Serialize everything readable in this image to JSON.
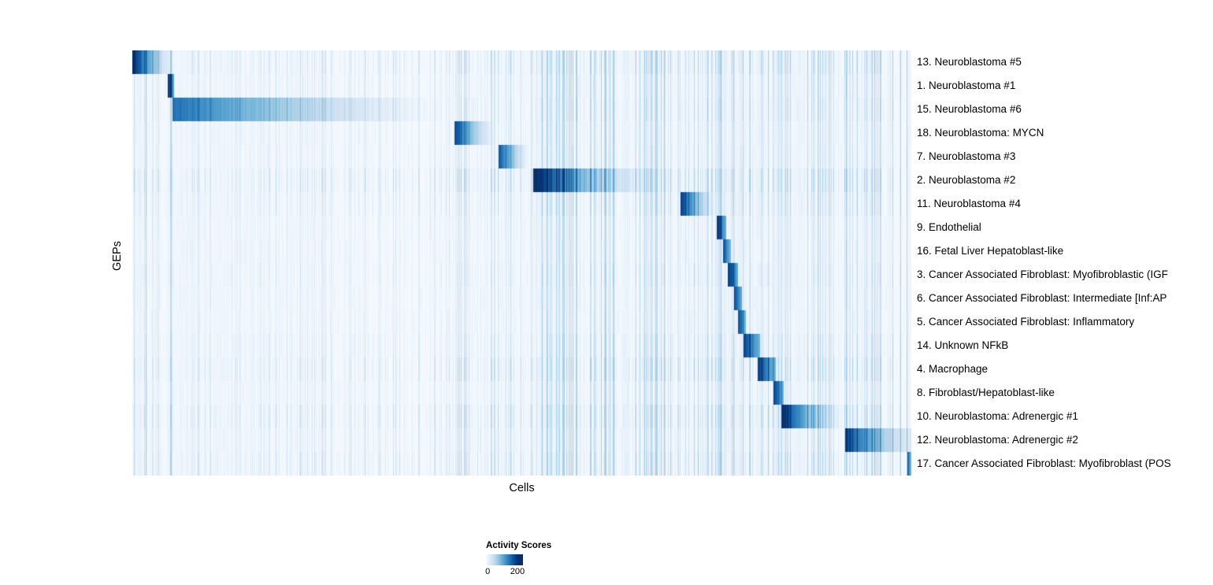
{
  "figure": {
    "background": "#ffffff",
    "x_axis_label": "Cells",
    "y_axis_label": "GEPs"
  },
  "legend": {
    "title": "Activity Scores",
    "tick_low": "0",
    "tick_high": "200"
  },
  "chart_data": {
    "type": "heatmap",
    "title": "",
    "xlabel": "Cells",
    "ylabel": "GEPs",
    "value_label": "Activity Scores",
    "value_range": [
      0,
      235
    ],
    "legend_ticks": [
      0,
      200
    ],
    "grid": false,
    "legend_position": "bottom-left",
    "colormap": {
      "name": "Blues",
      "stops": [
        {
          "pos": 0.0,
          "color": "#f7fbff"
        },
        {
          "pos": 0.125,
          "color": "#deebf7"
        },
        {
          "pos": 0.25,
          "color": "#c6dbef"
        },
        {
          "pos": 0.375,
          "color": "#9ecae1"
        },
        {
          "pos": 0.5,
          "color": "#6baed6"
        },
        {
          "pos": 0.625,
          "color": "#4292c6"
        },
        {
          "pos": 0.75,
          "color": "#2171b5"
        },
        {
          "pos": 0.875,
          "color": "#08519c"
        },
        {
          "pos": 1.0,
          "color": "#08306b"
        }
      ]
    },
    "rows": [
      {
        "label": "13. Neuroblastoma #5",
        "noise": 1.3,
        "block": {
          "start": 0.0,
          "end": 0.056,
          "peak": 235,
          "fade": 1.5
        }
      },
      {
        "label": "1. Neuroblastoma #1",
        "noise": 0.9,
        "block": {
          "start": 0.0455,
          "end": 0.0535,
          "peak": 235
        }
      },
      {
        "label": "15. Neuroblastoma #6",
        "noise": 1.0,
        "block": {
          "start": 0.052,
          "end": 0.413,
          "peak": 165,
          "fade": 1.6
        }
      },
      {
        "label": "18. Neuroblastoma: MYCN",
        "noise": 0.8,
        "block": {
          "start": 0.414,
          "end": 0.47,
          "peak": 195,
          "fade": 1.6
        }
      },
      {
        "label": "7. Neuroblastoma #3",
        "noise": 0.8,
        "block": {
          "start": 0.47,
          "end": 0.512,
          "peak": 195,
          "fade": 1.5
        }
      },
      {
        "label": "2. Neuroblastoma #2",
        "noise": 1.5,
        "block": {
          "start": 0.515,
          "end": 0.704,
          "peak": 235,
          "fade": 2.2
        }
      },
      {
        "label": "11. Neuroblastoma #4",
        "noise": 1.0,
        "block": {
          "start": 0.704,
          "end": 0.75,
          "peak": 215,
          "fade": 1.5
        }
      },
      {
        "label": "9. Endothelial",
        "noise": 0.7,
        "block": {
          "start": 0.75,
          "end": 0.762,
          "peak": 215
        }
      },
      {
        "label": "16. Fetal Liver Hepatoblast-like",
        "noise": 0.7,
        "block": {
          "start": 0.758,
          "end": 0.768,
          "peak": 200
        }
      },
      {
        "label": "3. Cancer Associated Fibroblast: Myofibroblastic (IGF",
        "noise": 0.8,
        "block": {
          "start": 0.764,
          "end": 0.778,
          "peak": 225
        }
      },
      {
        "label": "6. Cancer Associated Fibroblast: Intermediate [Inf:AP",
        "noise": 0.7,
        "block": {
          "start": 0.773,
          "end": 0.783,
          "peak": 195
        }
      },
      {
        "label": "5. Cancer Associated Fibroblast: Inflammatory",
        "noise": 0.7,
        "block": {
          "start": 0.778,
          "end": 0.788,
          "peak": 195
        }
      },
      {
        "label": "14. Unknown NFkB",
        "noise": 0.9,
        "block": {
          "start": 0.785,
          "end": 0.806,
          "peak": 205
        }
      },
      {
        "label": "4. Macrophage",
        "noise": 1.3,
        "block": {
          "start": 0.803,
          "end": 0.826,
          "peak": 205
        }
      },
      {
        "label": "8. Fibroblast/Hepatoblast-like",
        "noise": 0.8,
        "block": {
          "start": 0.823,
          "end": 0.836,
          "peak": 205
        }
      },
      {
        "label": "10. Neuroblastoma: Adrenergic #1",
        "noise": 1.4,
        "block": {
          "start": 0.833,
          "end": 0.919,
          "peak": 235,
          "fade": 1.8
        }
      },
      {
        "label": "12. Neuroblastoma: Adrenergic #2",
        "noise": 1.0,
        "block": {
          "start": 0.915,
          "end": 1.0,
          "peak": 205,
          "fade": 1.6,
          "floor": 0.12
        }
      },
      {
        "label": "17. Cancer Associated Fibroblast: Myofibroblast (POS",
        "noise": 1.3,
        "block": {
          "start": 0.995,
          "end": 1.0,
          "peak": 190
        }
      }
    ],
    "noise_regions": [
      {
        "start": 0.0,
        "end": 0.056,
        "intensity": 1.8
      },
      {
        "start": 0.056,
        "end": 0.413,
        "intensity": 0.6
      },
      {
        "start": 0.413,
        "end": 0.515,
        "intensity": 0.8
      },
      {
        "start": 0.515,
        "end": 0.704,
        "intensity": 1.9
      },
      {
        "start": 0.704,
        "end": 0.75,
        "intensity": 1.2
      },
      {
        "start": 0.75,
        "end": 0.84,
        "intensity": 1.1
      },
      {
        "start": 0.84,
        "end": 1.001,
        "intensity": 1.4
      }
    ]
  }
}
